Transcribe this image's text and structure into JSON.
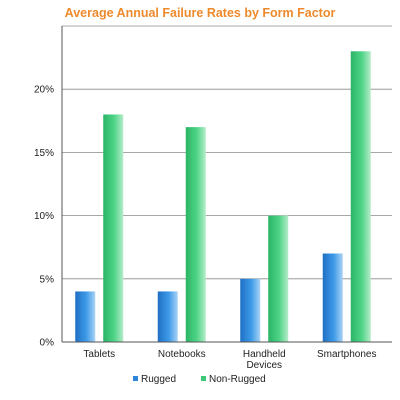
{
  "chart_data": {
    "type": "bar",
    "title": "Average Annual Failure Rates by Form Factor",
    "categories": [
      [
        "Tablets"
      ],
      [
        "Notebooks"
      ],
      [
        "Handheld",
        "Devices"
      ],
      [
        "Smartphones"
      ]
    ],
    "series": [
      {
        "name": "Rugged",
        "values": [
          4,
          4,
          5,
          7
        ],
        "color": "#2b86d9"
      },
      {
        "name": "Non-Rugged",
        "values": [
          18,
          17,
          10,
          23
        ],
        "color": "#3dc878"
      }
    ],
    "y_ticks": [
      {
        "value": 0,
        "label": "0%"
      },
      {
        "value": 5,
        "label": "5%"
      },
      {
        "value": 10,
        "label": "10%"
      },
      {
        "value": 15,
        "label": "15%"
      },
      {
        "value": 20,
        "label": "20%"
      }
    ],
    "ylim": [
      0,
      25
    ],
    "grid": true,
    "legend_position": "bottom"
  }
}
